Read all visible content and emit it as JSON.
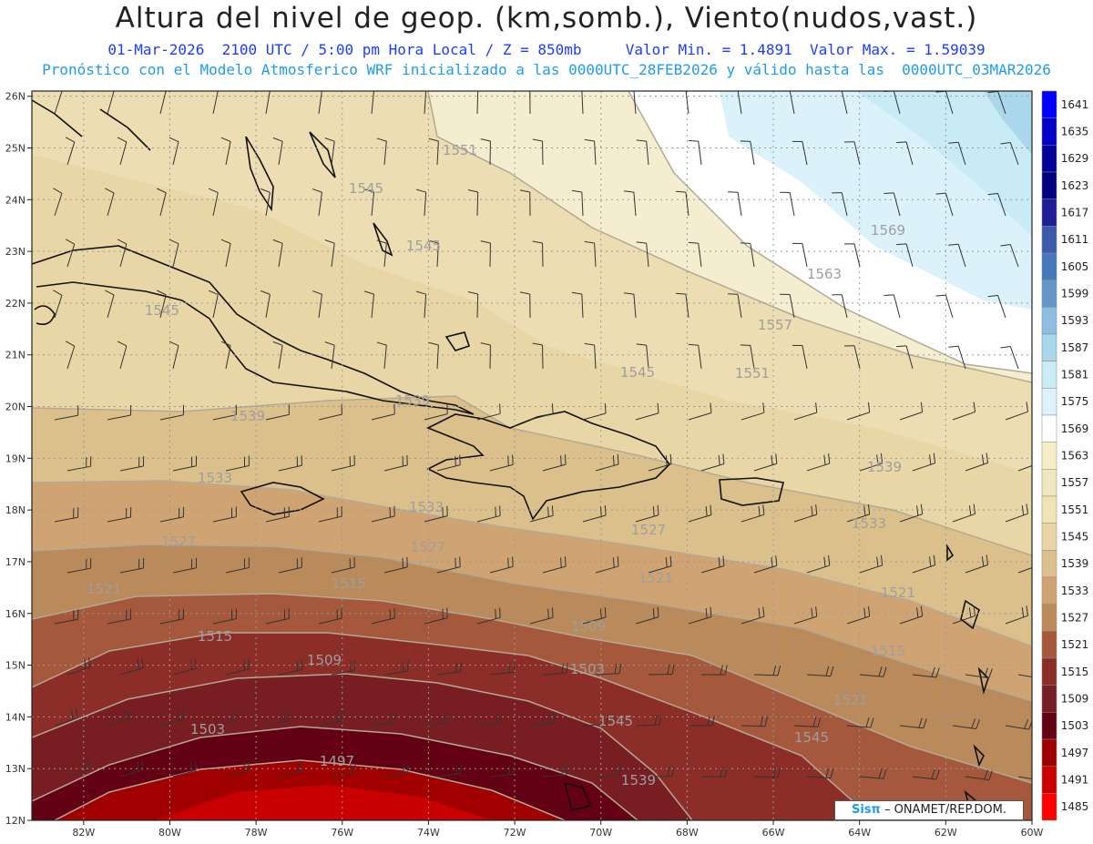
{
  "header": {
    "title": "Altura del nivel de geop. (km,somb.), Viento(nudos,vast.)",
    "line1": "01-Mar-2026  2100 UTC / 5:00 pm Hora Local / Z = 850mb     Valor Min. = 1.4891  Valor Max. = 1.59039",
    "line2": "Pronóstico con el Modelo Atmosferico WRF inicializado a las 0000UTC_28FEB2026 y válido hasta las  0000UTC_03MAR2026"
  },
  "map": {
    "lat_labels": [
      "26N",
      "25N",
      "24N",
      "23N",
      "22N",
      "21N",
      "20N",
      "19N",
      "18N",
      "17N",
      "16N",
      "15N",
      "14N",
      "13N",
      "12N"
    ],
    "lon_labels": [
      "82W",
      "80W",
      "78W",
      "76W",
      "74W",
      "72W",
      "70W",
      "68W",
      "66W",
      "64W",
      "62W",
      "60W"
    ],
    "contour_labels": [
      "1551",
      "1545",
      "1545",
      "1545",
      "1539",
      "1539",
      "1533",
      "1527",
      "1521",
      "1515",
      "1509",
      "1503",
      "1497",
      "1569",
      "1563",
      "1557",
      "1551",
      "1545",
      "1539",
      "1533",
      "1527",
      "1521",
      "1515",
      "1509",
      "1503",
      "1545",
      "1539",
      "1533",
      "1527",
      "1521",
      "1515",
      "1521",
      "1545"
    ]
  },
  "legend": {
    "levels": [
      "1641",
      "1635",
      "1629",
      "1623",
      "1617",
      "1611",
      "1605",
      "1599",
      "1593",
      "1587",
      "1581",
      "1575",
      "1569",
      "1563",
      "1557",
      "1551",
      "1545",
      "1539",
      "1533",
      "1527",
      "1521",
      "1515",
      "1509",
      "1503",
      "1497",
      "1491",
      "1485"
    ],
    "colors": [
      "#0000ff",
      "#0000c8",
      "#000096",
      "#000080",
      "#1e1e96",
      "#3c5aaa",
      "#4678be",
      "#6496c8",
      "#8cbee1",
      "#aad7eb",
      "#c8ebf5",
      "#dcf2fa",
      "#ffffff",
      "#f5edc8",
      "#f0e6c0",
      "#f0e3b4",
      "#e8d6a6",
      "#dcc08c",
      "#cfa472",
      "#bb8a5a",
      "#a5583c",
      "#8c2d28",
      "#781e23",
      "#640014",
      "#a00000",
      "#c80000",
      "#ff0000"
    ]
  },
  "credit": {
    "brand": "Sisπ",
    "text": "– ONAMET/REP.DOM."
  }
}
